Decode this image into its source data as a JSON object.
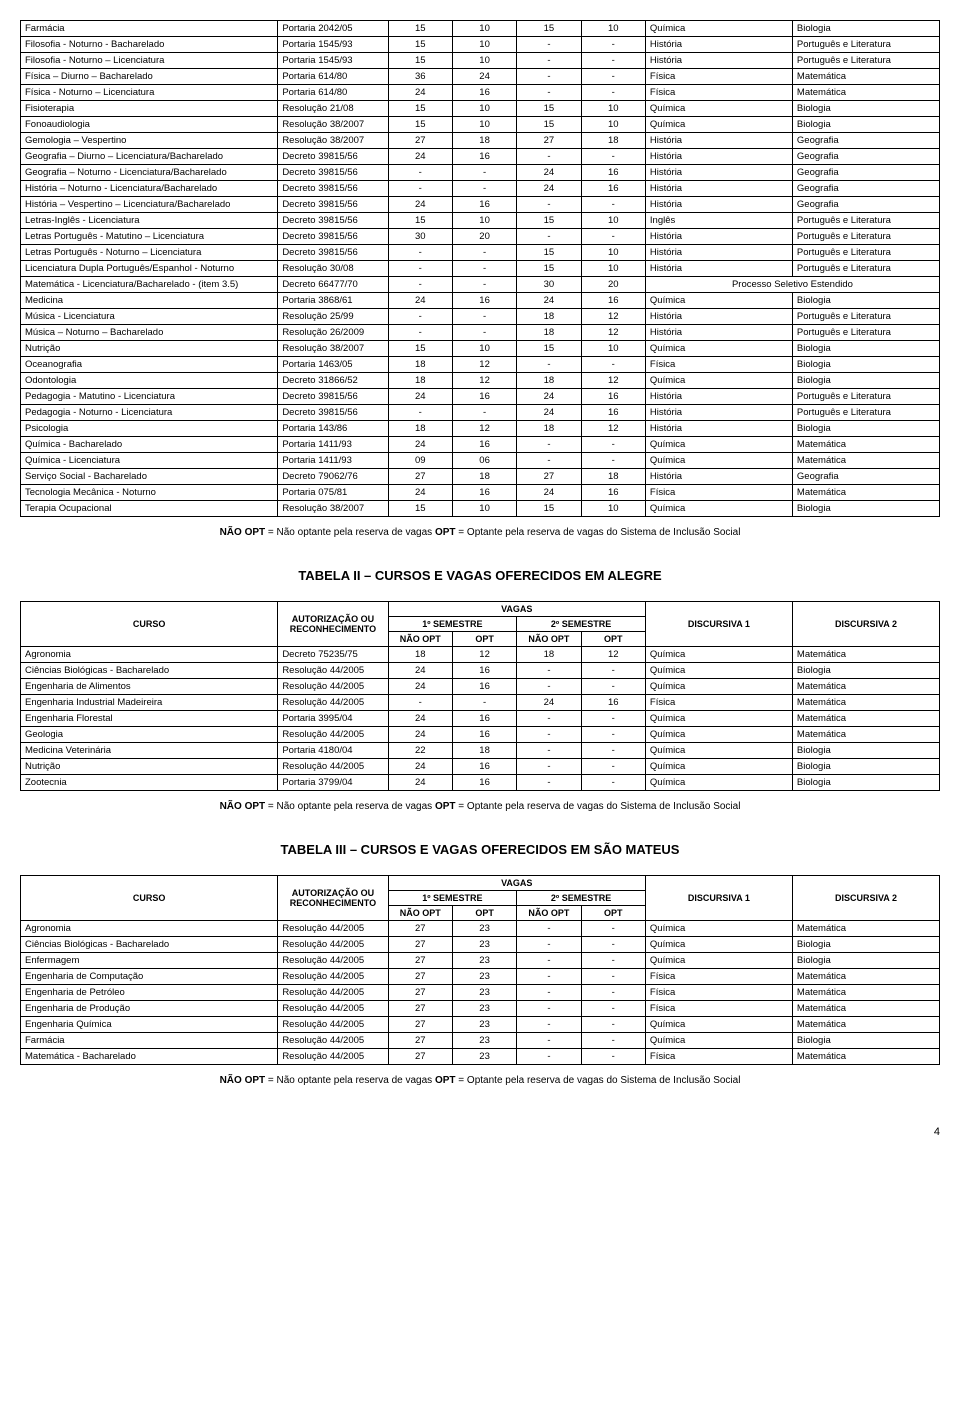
{
  "table1_rows": [
    [
      "Farmácia",
      "Portaria 2042/05",
      "15",
      "10",
      "15",
      "10",
      "Química",
      "Biologia"
    ],
    [
      "Filosofia - Noturno - Bacharelado",
      "Portaria 1545/93",
      "15",
      "10",
      "-",
      "-",
      "História",
      "Português e Literatura"
    ],
    [
      "Filosofia - Noturno – Licenciatura",
      "Portaria 1545/93",
      "15",
      "10",
      "-",
      "-",
      "História",
      "Português e Literatura"
    ],
    [
      "Física – Diurno – Bacharelado",
      "Portaria 614/80",
      "36",
      "24",
      "-",
      "-",
      "Física",
      "Matemática"
    ],
    [
      "Física - Noturno – Licenciatura",
      "Portaria 614/80",
      "24",
      "16",
      "-",
      "-",
      "Física",
      "Matemática"
    ],
    [
      "Fisioterapia",
      "Resolução 21/08",
      "15",
      "10",
      "15",
      "10",
      "Química",
      "Biologia"
    ],
    [
      "Fonoaudiologia",
      "Resolução 38/2007",
      "15",
      "10",
      "15",
      "10",
      "Química",
      "Biologia"
    ],
    [
      "Gemologia – Vespertino",
      "Resolução 38/2007",
      "27",
      "18",
      "27",
      "18",
      "História",
      "Geografia"
    ],
    [
      "Geografia – Diurno – Licenciatura/Bacharelado",
      "Decreto 39815/56",
      "24",
      "16",
      "-",
      "-",
      "História",
      "Geografia"
    ],
    [
      "Geografia – Noturno - Licenciatura/Bacharelado",
      "Decreto 39815/56",
      "-",
      "-",
      "24",
      "16",
      "História",
      "Geografia"
    ],
    [
      "História – Noturno - Licenciatura/Bacharelado",
      "Decreto 39815/56",
      "-",
      "-",
      "24",
      "16",
      "História",
      "Geografia"
    ],
    [
      "História – Vespertino – Licenciatura/Bacharelado",
      "Decreto 39815/56",
      "24",
      "16",
      "-",
      "-",
      "História",
      "Geografia"
    ],
    [
      "Letras-Inglês - Licenciatura",
      "Decreto 39815/56",
      "15",
      "10",
      "15",
      "10",
      "Inglês",
      "Português e Literatura"
    ],
    [
      "Letras Português - Matutino – Licenciatura",
      "Decreto 39815/56",
      "30",
      "20",
      "-",
      "-",
      "História",
      "Português e Literatura"
    ],
    [
      "Letras Português - Noturno – Licenciatura",
      "Decreto 39815/56",
      "-",
      "-",
      "15",
      "10",
      "História",
      "Português e Literatura"
    ],
    [
      "Licenciatura Dupla Português/Espanhol - Noturno",
      "Resolução 30/08",
      "-",
      "-",
      "15",
      "10",
      "História",
      "Português e Literatura"
    ],
    [
      "Matemática - Licenciatura/Bacharelado - (item 3.5)",
      "Decreto 66477/70",
      "-",
      "-",
      "30",
      "20",
      "Processo Seletivo Estendido",
      "__MERGE__"
    ],
    [
      "Medicina",
      "Portaria 3868/61",
      "24",
      "16",
      "24",
      "16",
      "Química",
      "Biologia"
    ],
    [
      "Música - Licenciatura",
      "Resolução 25/99",
      "-",
      "-",
      "18",
      "12",
      "História",
      "Português e Literatura"
    ],
    [
      "Música – Noturno – Bacharelado",
      "Resolução 26/2009",
      "-",
      "-",
      "18",
      "12",
      "História",
      "Português e Literatura"
    ],
    [
      "Nutrição",
      "Resolução 38/2007",
      "15",
      "10",
      "15",
      "10",
      "Química",
      "Biologia"
    ],
    [
      "Oceanografia",
      "Portaria 1463/05",
      "18",
      "12",
      "-",
      "-",
      "Física",
      "Biologia"
    ],
    [
      "Odontologia",
      "Decreto 31866/52",
      "18",
      "12",
      "18",
      "12",
      "Química",
      "Biologia"
    ],
    [
      "Pedagogia - Matutino - Licenciatura",
      "Decreto 39815/56",
      "24",
      "16",
      "24",
      "16",
      "História",
      "Português e Literatura"
    ],
    [
      "Pedagogia - Noturno - Licenciatura",
      "Decreto 39815/56",
      "-",
      "-",
      "24",
      "16",
      "História",
      "Português e Literatura"
    ],
    [
      "Psicologia",
      "Portaria 143/86",
      "18",
      "12",
      "18",
      "12",
      "História",
      "Biologia"
    ],
    [
      "Química - Bacharelado",
      "Portaria 1411/93",
      "24",
      "16",
      "-",
      "-",
      "Química",
      "Matemática"
    ],
    [
      "Química - Licenciatura",
      "Portaria 1411/93",
      "09",
      "06",
      "-",
      "-",
      "Química",
      "Matemática"
    ],
    [
      "Serviço Social  - Bacharelado",
      "Decreto 79062/76",
      "27",
      "18",
      "27",
      "18",
      "História",
      "Geografia"
    ],
    [
      "Tecnologia Mecânica - Noturno",
      "Portaria 075/81",
      "24",
      "16",
      "24",
      "16",
      "Física",
      "Matemática"
    ],
    [
      "Terapia Ocupacional",
      "Resolução 38/2007",
      "15",
      "10",
      "15",
      "10",
      "Química",
      "Biologia"
    ]
  ],
  "note_bold1": "NÃO OPT",
  "note_text1": " = Não optante pela reserva de vagas  ",
  "note_bold2": "OPT",
  "note_text2": " = Optante pela reserva de vagas do Sistema de Inclusão Social",
  "title2": "TABELA II – CURSOS E VAGAS OFERECIDOS EM ALEGRE",
  "hdr_curso": "CURSO",
  "hdr_auth": "AUTORIZAÇÃO OU RECONHECIMENTO",
  "hdr_vagas": "VAGAS",
  "hdr_sem1": "1º SEMESTRE",
  "hdr_sem2": "2º SEMESTRE",
  "hdr_disc1": "DISCURSIVA 1",
  "hdr_disc2": "DISCURSIVA 2",
  "hdr_naoopt": "NÃO OPT",
  "hdr_opt": "OPT",
  "table2_rows": [
    [
      "Agronomia",
      "Decreto 75235/75",
      "18",
      "12",
      "18",
      "12",
      "Química",
      "Matemática"
    ],
    [
      "Ciências Biológicas - Bacharelado",
      "Resolução 44/2005",
      "24",
      "16",
      "-",
      "-",
      "Química",
      "Biologia"
    ],
    [
      "Engenharia de Alimentos",
      "Resolução 44/2005",
      "24",
      "16",
      "-",
      "-",
      "Química",
      "Matemática"
    ],
    [
      "Engenharia Industrial Madeireira",
      "Resolução 44/2005",
      "-",
      "-",
      "24",
      "16",
      "Física",
      "Matemática"
    ],
    [
      "Engenharia Florestal",
      "Portaria 3995/04",
      "24",
      "16",
      "-",
      "-",
      "Química",
      "Matemática"
    ],
    [
      "Geologia",
      "Resolução 44/2005",
      "24",
      "16",
      "-",
      "-",
      "Química",
      "Matemática"
    ],
    [
      "Medicina Veterinária",
      "Portaria 4180/04",
      "22",
      "18",
      "-",
      "-",
      "Química",
      "Biologia"
    ],
    [
      "Nutrição",
      "Resolução 44/2005",
      "24",
      "16",
      "-",
      "-",
      "Química",
      "Biologia"
    ],
    [
      "Zootecnia",
      "Portaria 3799/04",
      "24",
      "16",
      "-",
      "-",
      "Química",
      "Biologia"
    ]
  ],
  "title3": "TABELA III – CURSOS E VAGAS OFERECIDOS EM SÃO MATEUS",
  "table3_rows": [
    [
      "Agronomia",
      "Resolução  44/2005",
      "27",
      "23",
      "-",
      "-",
      "Química",
      "Matemática"
    ],
    [
      "Ciências Biológicas - Bacharelado",
      "Resolução  44/2005",
      "27",
      "23",
      "-",
      "-",
      "Química",
      "Biologia"
    ],
    [
      "Enfermagem",
      "Resolução  44/2005",
      "27",
      "23",
      "-",
      "-",
      "Química",
      "Biologia"
    ],
    [
      "Engenharia de Computação",
      "Resolução  44/2005",
      "27",
      "23",
      "-",
      "-",
      "Física",
      "Matemática"
    ],
    [
      "Engenharia de Petróleo",
      "Resolução  44/2005",
      "27",
      "23",
      "-",
      "-",
      "Física",
      "Matemática"
    ],
    [
      "Engenharia de Produção",
      "Resolução  44/2005",
      "27",
      "23",
      "-",
      "-",
      "Física",
      "Matemática"
    ],
    [
      "Engenharia Química",
      "Resolução  44/2005",
      "27",
      "23",
      "-",
      "-",
      "Química",
      "Matemática"
    ],
    [
      "Farmácia",
      "Resolução  44/2005",
      "27",
      "23",
      "-",
      "-",
      "Química",
      "Biologia"
    ],
    [
      "Matemática -  Bacharelado",
      "Resolução  44/2005",
      "27",
      "23",
      "-",
      "-",
      "Física",
      "Matemática"
    ]
  ],
  "page_num": "4",
  "col_widths": [
    "28%",
    "12%",
    "7%",
    "7%",
    "7%",
    "7%",
    "16%",
    "16%"
  ]
}
